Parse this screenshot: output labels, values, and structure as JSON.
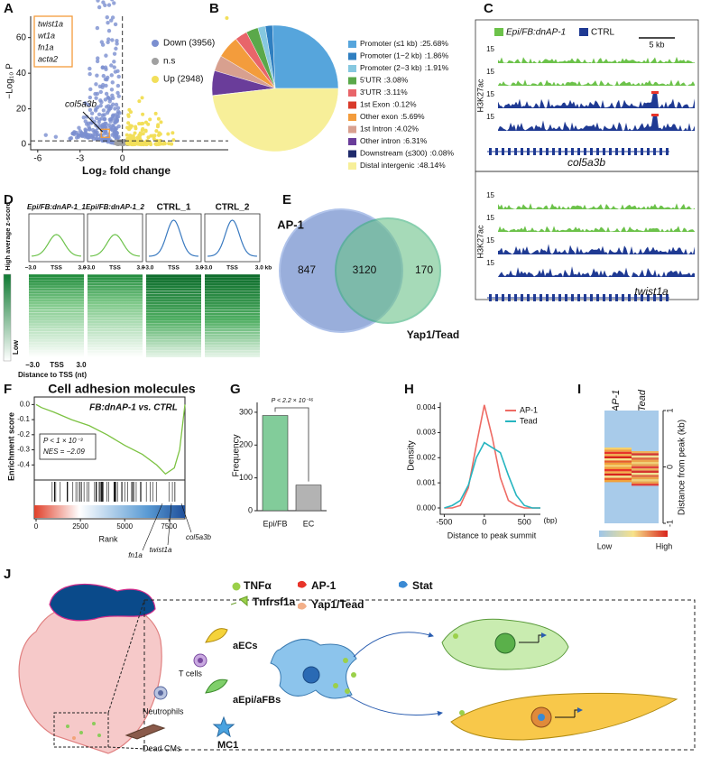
{
  "panel_letters": [
    "A",
    "B",
    "C",
    "D",
    "E",
    "F",
    "G",
    "H",
    "I",
    "J"
  ],
  "panels": {
    "volcano": {
      "xlabel": "Log₂ fold change",
      "ylabel": "−Log₁₀ P",
      "xlim": [
        -6.5,
        7.5
      ],
      "ylim": [
        -3,
        72
      ],
      "xticks": [
        -6,
        -3,
        0
      ],
      "yticks": [
        0,
        20,
        40,
        60
      ],
      "legend": [
        "Down (3956)",
        "n.s",
        "Up (2948)"
      ],
      "colors": [
        "#7b8fd0",
        "#a0a0a0",
        "#f2df5a"
      ],
      "genes": [
        "twist1a",
        "wt1a",
        "fn1a",
        "acta2"
      ],
      "annotation": "col5a3b"
    },
    "tracks": {
      "legend": [
        "Epi/FB:dnAP-1",
        "CTRL"
      ],
      "colors": [
        "#6cc24a",
        "#1f3a93"
      ],
      "scale": "5 kb",
      "ylabel": "H3K27ac",
      "loci": [
        {
          "gene": "col5a3b",
          "track_max": [
            "15",
            "15",
            "15",
            "15"
          ]
        },
        {
          "gene": "twist1a",
          "track_max": [
            "15",
            "15",
            "15",
            "15"
          ]
        }
      ]
    },
    "profiles": {
      "titles": [
        "Epi/FB:dnAP-1_1",
        "Epi/FB:dnAP-1_2",
        "CTRL_1",
        "CTRL_2"
      ],
      "ticks": [
        [
          "−3.0",
          "TSS",
          "3.0"
        ],
        [
          "−3.0",
          "TSS",
          "3.0"
        ],
        [
          "−3.0",
          "TSS",
          "3.0"
        ],
        [
          "−3.0",
          "TSS",
          "3.0 kb"
        ]
      ],
      "colorbar": [
        "High average z-score",
        "Low"
      ],
      "heatmap_ticks": [
        "−3.0",
        "TSS",
        "3.0"
      ],
      "xlabel": "Distance to TSS (nt)"
    },
    "venn": {
      "sets": [
        "AP-1",
        "Yap1/Tead"
      ],
      "counts": [
        847,
        3120,
        170
      ]
    },
    "gsea": {
      "title": "Cell adhesion molecules",
      "subtitle": "FB:dnAP-1 vs. CTRL",
      "stats": [
        "P < 1 × 10⁻³",
        "NES = −2.09"
      ],
      "ylabel": "Enrichment score",
      "xlabel": "Rank",
      "xlim": [
        0,
        8400
      ],
      "ylim": [
        -0.5,
        0.05
      ],
      "xticks": [
        0,
        2500,
        5000,
        7500
      ],
      "yticks": [
        {
          "value": 0,
          "label": "0.0"
        },
        -0.1,
        -0.2,
        -0.3,
        -0.4
      ],
      "x": [
        0,
        300,
        1000,
        2000,
        3000,
        4000,
        5000,
        6000,
        6800,
        7300,
        7800,
        8100,
        8300,
        8400
      ],
      "values": [
        0,
        -0.02,
        -0.05,
        -0.1,
        -0.14,
        -0.2,
        -0.27,
        -0.33,
        -0.4,
        -0.46,
        -0.42,
        -0.3,
        -0.1,
        0
      ],
      "color": "#7cc242",
      "genes": [
        "fn1a",
        "twist1a",
        "col5a3b"
      ]
    },
    "peak_heatmap": {
      "columns": [
        "AP-1",
        "Tead"
      ],
      "ylim": [
        -1,
        1
      ],
      "yticks": [
        1,
        0,
        -1
      ],
      "ylabel": "Distance from peak (kb)",
      "colorbar": [
        "Low",
        "High"
      ]
    },
    "schematic": {
      "legend": [
        "TNFα",
        "AP-1",
        "Stat",
        "Tnfrsf1a",
        "Yap1/Tead"
      ],
      "cells": [
        "aECs",
        "T cells",
        "aEpi/aFBs",
        "Neutrophils",
        "Dead CMs",
        "MC1"
      ]
    }
  },
  "chart_data": [
    {
      "type": "pie",
      "categories": [
        "Promoter (≤1 kb)",
        "Promoter (1−2 kb)",
        "Promoter (2−3 kb)",
        "5′UTR",
        "3′UTR",
        "1st Exon",
        "Other exon",
        "1st Intron",
        "Other intron",
        "Downstream (≤300)",
        "Distal intergenic"
      ],
      "values": [
        25.68,
        1.86,
        1.91,
        3.08,
        3.11,
        0.12,
        5.69,
        4.02,
        6.31,
        0.08,
        48.14
      ],
      "value_labels": [
        ":25.68%",
        ":1.86%",
        ":1.91%",
        ":3.08%",
        ":3.11%",
        ":0.12%",
        ":5.69%",
        ":4.02%",
        ":6.31%",
        ":0.08%",
        ":48.14%"
      ],
      "colors": [
        "#56a5dc",
        "#2f7fc1",
        "#86c8e0",
        "#5aa84a",
        "#e8656a",
        "#d93a2a",
        "#f39c3c",
        "#d8a08f",
        "#6a3d9a",
        "#1f2a6b",
        "#f7ef99"
      ]
    },
    {
      "type": "bar",
      "categories": [
        "Epi/FB",
        "EC"
      ],
      "values": [
        290,
        78
      ],
      "colors": [
        "#82cc9a",
        "#b3b3b3"
      ],
      "ylabel": "Frequency",
      "ylim": [
        0,
        330
      ],
      "yticks": [
        0,
        100,
        200,
        300
      ],
      "annotation": "P < 2.2 × 10⁻¹⁶"
    },
    {
      "type": "line",
      "x": [
        -500,
        -400,
        -300,
        -200,
        -100,
        0,
        100,
        200,
        300,
        400,
        500,
        600,
        700
      ],
      "series": [
        {
          "name": "AP-1",
          "color": "#ee6b64",
          "values": [
            0,
            0,
            0.0001,
            0.0008,
            0.0025,
            0.0041,
            0.0028,
            0.0012,
            0.0003,
            0.0001,
            0,
            0,
            0
          ]
        },
        {
          "name": "Tead",
          "color": "#26b5c0",
          "values": [
            0,
            0.0001,
            0.0003,
            0.0009,
            0.002,
            0.0026,
            0.0024,
            0.0022,
            0.0013,
            0.0005,
            0.0001,
            0,
            0
          ]
        }
      ],
      "xlabel": "Distance to peak summit",
      "xunit": "(bp)",
      "ylabel": "Density",
      "xlim": [
        -550,
        700
      ],
      "ylim": [
        0,
        0.0042
      ],
      "xticks": [
        -500,
        0,
        500
      ],
      "yticks": [
        {
          "value": 0,
          "label": "0.000"
        },
        {
          "value": 0.001,
          "label": "0.001"
        },
        {
          "value": 0.002,
          "label": "0.002"
        },
        {
          "value": 0.003,
          "label": "0.003"
        },
        {
          "value": 0.004,
          "label": "0.004"
        }
      ]
    }
  ]
}
